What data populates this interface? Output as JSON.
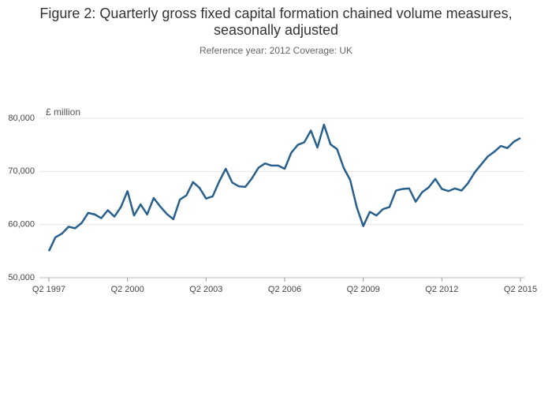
{
  "chart_data": {
    "type": "line",
    "title": [
      "Figure 2: Quarterly gross fixed capital formation chained volume measures,",
      "seasonally adjusted"
    ],
    "subtitle": "Reference year: 2012 Coverage: UK",
    "y_label": "£ million",
    "categories": [
      "Q2 1997",
      null,
      null,
      null,
      null,
      null,
      null,
      null,
      null,
      null,
      null,
      null,
      "Q2 2000",
      null,
      null,
      null,
      null,
      null,
      null,
      null,
      null,
      null,
      null,
      null,
      "Q2 2003",
      null,
      null,
      null,
      null,
      null,
      null,
      null,
      null,
      null,
      null,
      null,
      "Q2 2006",
      null,
      null,
      null,
      null,
      null,
      null,
      null,
      null,
      null,
      null,
      null,
      "Q2 2009",
      null,
      null,
      null,
      null,
      null,
      null,
      null,
      null,
      null,
      null,
      null,
      "Q2 2012",
      null,
      null,
      null,
      null,
      null,
      null,
      null,
      null,
      null,
      null,
      null,
      "Q2 2015"
    ],
    "series": [
      {
        "name": "Gross fixed capital formation",
        "color": "#27608c",
        "values": [
          55000,
          57600,
          58300,
          59600,
          59300,
          60300,
          62200,
          61900,
          61200,
          62700,
          61500,
          63300,
          66300,
          61700,
          63800,
          61900,
          65000,
          63400,
          62000,
          61000,
          64700,
          65500,
          68000,
          66900,
          64900,
          65300,
          68100,
          70500,
          67900,
          67200,
          67100,
          68700,
          70700,
          71500,
          71100,
          71100,
          70500,
          73500,
          75000,
          75500,
          77700,
          74500,
          78800,
          75100,
          74200,
          70700,
          68400,
          63300,
          59700,
          62400,
          61700,
          62900,
          63300,
          66400,
          66700,
          66800,
          64300,
          66100,
          67000,
          68600,
          66700,
          66300,
          66800,
          66400,
          67800,
          69800,
          71300,
          72800,
          73700,
          74800,
          74400,
          75600,
          76300
        ]
      }
    ],
    "ylim": [
      50000,
      80000
    ],
    "yticks": [
      {
        "value": 50000,
        "label": "50,000"
      },
      {
        "value": 60000,
        "label": "60,000"
      },
      {
        "value": 70000,
        "label": "70,000"
      },
      {
        "value": 80000,
        "label": "80,000"
      }
    ],
    "grid": true
  }
}
